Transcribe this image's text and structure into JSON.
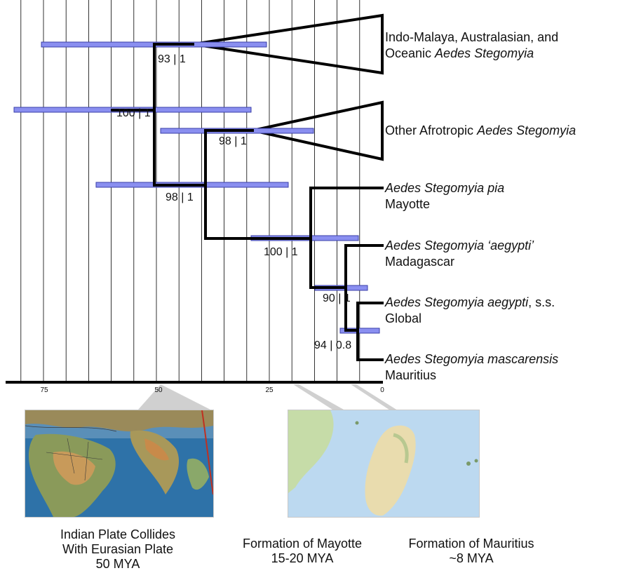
{
  "axis": {
    "ticks": [
      "75",
      "50",
      "25",
      "0"
    ]
  },
  "clades": [
    {
      "line1": "Indo-Malaya, Australasian, and",
      "line2_prefix": "Oceanic ",
      "line2_italic": "Aedes Stegomyia"
    },
    {
      "line1_prefix": "Other Afrotropic ",
      "line1_italic": "Aedes Stegomyia"
    }
  ],
  "tips": [
    {
      "italic": "Aedes Stegomyia pia",
      "region": "Mayotte"
    },
    {
      "italic": "Aedes Stegomyia ‘aegypti’",
      "region": "Madagascar"
    },
    {
      "italic": "Aedes Stegomyia aegypti",
      "suffix": ", s.s.",
      "region": "Global"
    },
    {
      "italic": "Aedes Stegomyia mascarensis",
      "region": "Mauritius"
    }
  ],
  "supports": [
    "93 | 1",
    "100 | 1",
    "98 | 1",
    "98 | 1",
    "100 | 1",
    "90 | 1",
    "94 | 0.8"
  ],
  "captions": {
    "india": [
      "Indian Plate Collides",
      "With Eurasian Plate",
      "50 MYA"
    ],
    "mayotte": [
      "Formation of Mayotte",
      "15-20 MYA"
    ],
    "mauritius": [
      "Formation of Mauritius",
      "~8 MYA"
    ]
  },
  "colors": {
    "bar_fill": "#8a8ff0",
    "bar_stroke": "#3a3fa8",
    "branch": "#000000",
    "ocean": "#bcd9f0",
    "land": "#e9dcae"
  }
}
